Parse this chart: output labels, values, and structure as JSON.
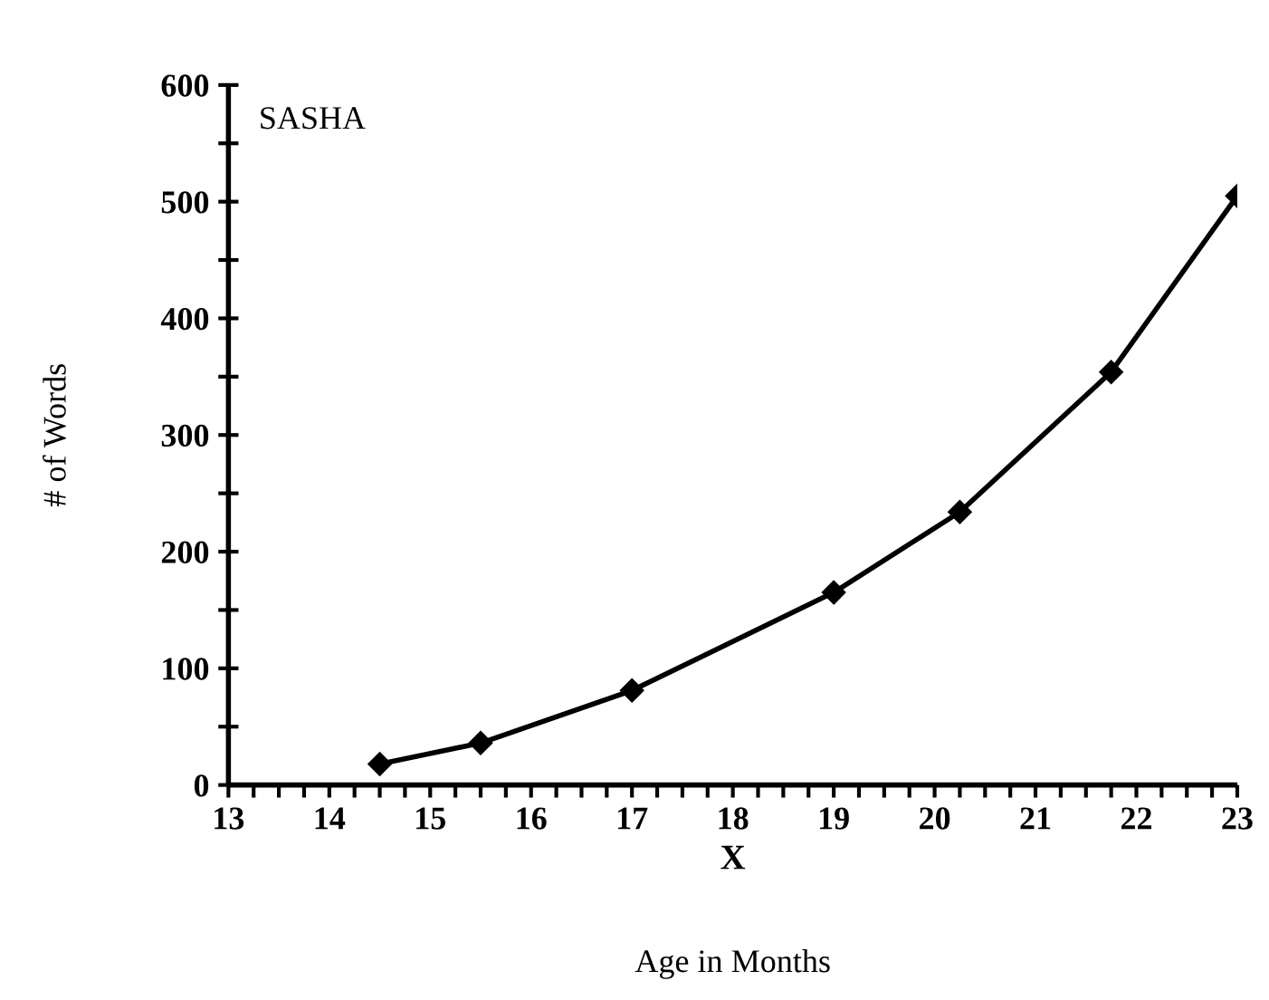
{
  "chart_data": {
    "type": "line",
    "xlabel": "Age in Months",
    "ylabel": "# of Words",
    "annotations": [
      "SASHA",
      "X"
    ],
    "x": [
      14.5,
      15.5,
      17,
      19,
      20.25,
      21.75,
      23
    ],
    "series": [
      {
        "color": "#000000",
        "values": [
          18,
          36,
          81,
          165,
          234,
          354,
          505
        ]
      }
    ],
    "marker": "diamond",
    "line_style": "solid",
    "grid": false,
    "legend": false,
    "xlim": [
      13,
      23
    ],
    "ylim": [
      0,
      600
    ],
    "xticks": [
      13,
      {
        "value": 13.25,
        "label": null
      },
      {
        "value": 13.5,
        "label": null
      },
      {
        "value": 13.75,
        "label": null
      },
      14,
      {
        "value": 14.25,
        "label": null
      },
      {
        "value": 14.5,
        "label": null
      },
      {
        "value": 14.75,
        "label": null
      },
      15,
      {
        "value": 15.25,
        "label": null
      },
      {
        "value": 15.5,
        "label": null
      },
      {
        "value": 15.75,
        "label": null
      },
      16,
      {
        "value": 16.25,
        "label": null
      },
      {
        "value": 16.5,
        "label": null
      },
      {
        "value": 16.75,
        "label": null
      },
      17,
      {
        "value": 17.25,
        "label": null
      },
      {
        "value": 17.5,
        "label": null
      },
      {
        "value": 17.75,
        "label": null
      },
      18,
      {
        "value": 18.25,
        "label": null
      },
      {
        "value": 18.5,
        "label": null
      },
      {
        "value": 18.75,
        "label": null
      },
      19,
      {
        "value": 19.25,
        "label": null
      },
      {
        "value": 19.5,
        "label": null
      },
      {
        "value": 19.75,
        "label": null
      },
      20,
      {
        "value": 20.25,
        "label": null
      },
      {
        "value": 20.5,
        "label": null
      },
      {
        "value": 20.75,
        "label": null
      },
      21,
      {
        "value": 21.25,
        "label": null
      },
      {
        "value": 21.5,
        "label": null
      },
      {
        "value": 21.75,
        "label": null
      },
      22,
      {
        "value": 22.25,
        "label": null
      },
      {
        "value": 22.5,
        "label": null
      },
      {
        "value": 22.75,
        "label": null
      },
      23
    ],
    "yticks": [
      0,
      {
        "value": 50,
        "label": null
      },
      100,
      {
        "value": 150,
        "label": null
      },
      200,
      {
        "value": 250,
        "label": null
      },
      300,
      {
        "value": 350,
        "label": null
      },
      400,
      {
        "value": 450,
        "label": null
      },
      500,
      {
        "value": 550,
        "label": null
      },
      600
    ]
  }
}
